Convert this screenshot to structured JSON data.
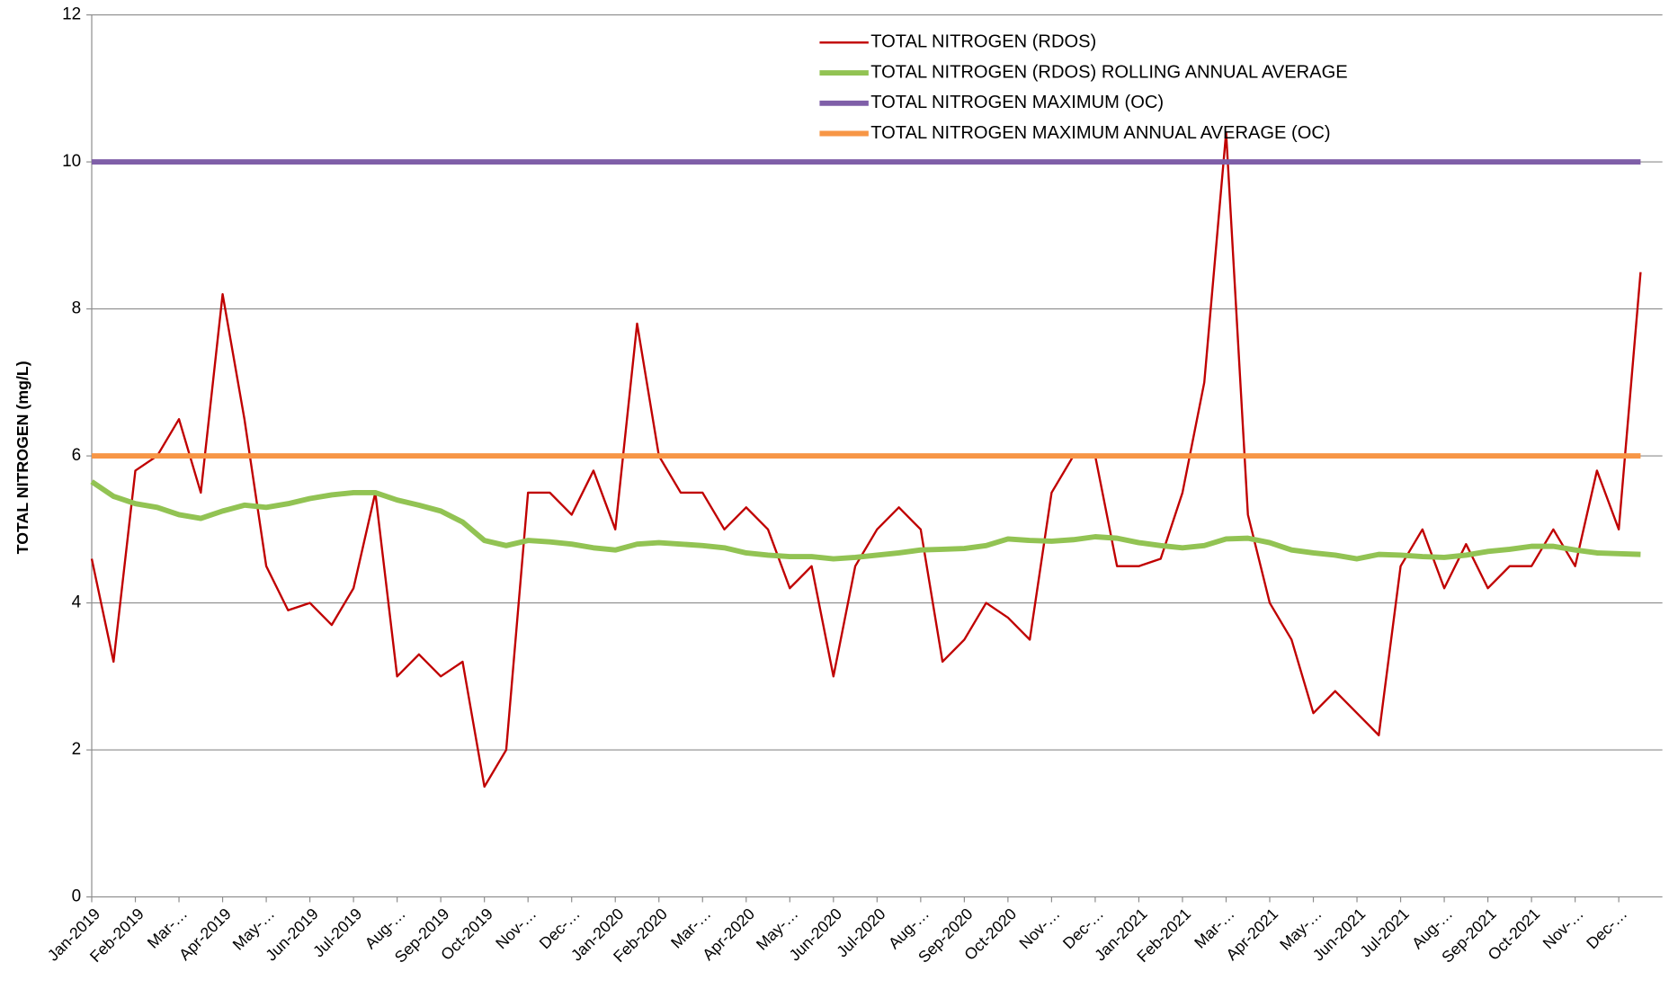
{
  "chart_data": {
    "type": "line",
    "ylabel": "TOTAL NITROGEN (mg/L)",
    "ylim": [
      0,
      12
    ],
    "yticks": [
      0,
      2,
      4,
      6,
      8,
      10,
      12
    ],
    "grid": true,
    "legend": "top",
    "categories": [
      "Jan-2019",
      null,
      "Feb-2019",
      null,
      "Mar-…",
      null,
      "Apr-2019",
      null,
      "May-…",
      null,
      "Jun-2019",
      null,
      "Jul-2019",
      null,
      "Aug-…",
      null,
      "Sep-2019",
      null,
      "Oct-2019",
      null,
      "Nov-…",
      null,
      "Dec-…",
      null,
      "Jan-2020",
      null,
      "Feb-2020",
      null,
      "Mar-…",
      null,
      "Apr-2020",
      null,
      "May-…",
      null,
      "Jun-2020",
      null,
      "Jul-2020",
      null,
      "Aug-…",
      null,
      "Sep-2020",
      null,
      "Oct-2020",
      null,
      "Nov-…",
      null,
      "Dec-…",
      null,
      "Jan-2021",
      null,
      "Feb-2021",
      null,
      "Mar-…",
      null,
      "Apr-2021",
      null,
      "May-…",
      null,
      "Jun-2021",
      null,
      "Jul-2021",
      null,
      "Aug-…",
      null,
      "Sep-2021",
      null,
      "Oct-2021",
      null,
      "Nov-…",
      null,
      "Dec-…",
      null
    ],
    "series": [
      {
        "name": "TOTAL NITROGEN (RDOS)",
        "color": "#c00000",
        "width": 2,
        "values": [
          4.6,
          3.2,
          5.8,
          6.0,
          6.5,
          5.5,
          8.2,
          6.5,
          4.5,
          3.9,
          4.0,
          3.7,
          4.2,
          5.5,
          3.0,
          3.3,
          3.0,
          3.2,
          1.5,
          2.0,
          5.5,
          5.5,
          5.2,
          5.8,
          5.0,
          7.8,
          6.0,
          5.5,
          5.5,
          5.0,
          5.3,
          5.0,
          4.2,
          4.5,
          3.0,
          4.5,
          5.0,
          5.3,
          5.0,
          3.2,
          3.5,
          4.0,
          3.8,
          3.5,
          5.5,
          6.0,
          6.0,
          4.5,
          4.5,
          4.6,
          5.5,
          7.0,
          10.4,
          5.2,
          4.0,
          3.5,
          2.5,
          2.8,
          2.5,
          2.2,
          4.5,
          5.0,
          4.2,
          4.8,
          4.2,
          4.5,
          4.5,
          5.0,
          4.5,
          5.8,
          5.0,
          8.5
        ]
      },
      {
        "name": "TOTAL NITROGEN (RDOS) ROLLING ANNUAL AVERAGE",
        "color": "#92c353",
        "width": 5,
        "values": [
          5.65,
          5.45,
          5.35,
          5.3,
          5.2,
          5.15,
          5.25,
          5.33,
          5.3,
          5.35,
          5.42,
          5.47,
          5.5,
          5.5,
          5.4,
          5.33,
          5.25,
          5.1,
          4.85,
          4.78,
          4.85,
          4.83,
          4.8,
          4.75,
          4.72,
          4.8,
          4.82,
          4.8,
          4.78,
          4.75,
          4.68,
          4.65,
          4.63,
          4.63,
          4.6,
          4.62,
          4.65,
          4.68,
          4.72,
          4.73,
          4.74,
          4.78,
          4.87,
          4.85,
          4.84,
          4.86,
          4.9,
          4.88,
          4.82,
          4.78,
          4.75,
          4.78,
          4.87,
          4.88,
          4.82,
          4.72,
          4.68,
          4.65,
          4.6,
          4.66,
          4.65,
          4.63,
          4.62,
          4.65,
          4.7,
          4.73,
          4.77,
          4.77,
          4.72,
          4.68,
          4.67,
          4.66
        ]
      },
      {
        "name": "TOTAL NITROGEN MAXIMUM (OC)",
        "color": "#7f5fa8",
        "width": 5,
        "values": [
          10,
          10,
          10,
          10,
          10,
          10,
          10,
          10,
          10,
          10,
          10,
          10,
          10,
          10,
          10,
          10,
          10,
          10,
          10,
          10,
          10,
          10,
          10,
          10,
          10,
          10,
          10,
          10,
          10,
          10,
          10,
          10,
          10,
          10,
          10,
          10,
          10,
          10,
          10,
          10,
          10,
          10,
          10,
          10,
          10,
          10,
          10,
          10,
          10,
          10,
          10,
          10,
          10,
          10,
          10,
          10,
          10,
          10,
          10,
          10,
          10,
          10,
          10,
          10,
          10,
          10,
          10,
          10,
          10,
          10,
          10,
          10
        ]
      },
      {
        "name": "TOTAL NITROGEN MAXIMUM ANNUAL AVERAGE (OC)",
        "color": "#f79646",
        "width": 5,
        "values": [
          6,
          6,
          6,
          6,
          6,
          6,
          6,
          6,
          6,
          6,
          6,
          6,
          6,
          6,
          6,
          6,
          6,
          6,
          6,
          6,
          6,
          6,
          6,
          6,
          6,
          6,
          6,
          6,
          6,
          6,
          6,
          6,
          6,
          6,
          6,
          6,
          6,
          6,
          6,
          6,
          6,
          6,
          6,
          6,
          6,
          6,
          6,
          6,
          6,
          6,
          6,
          6,
          6,
          6,
          6,
          6,
          6,
          6,
          6,
          6,
          6,
          6,
          6,
          6,
          6,
          6,
          6,
          6,
          6,
          6,
          6,
          6
        ]
      }
    ]
  }
}
